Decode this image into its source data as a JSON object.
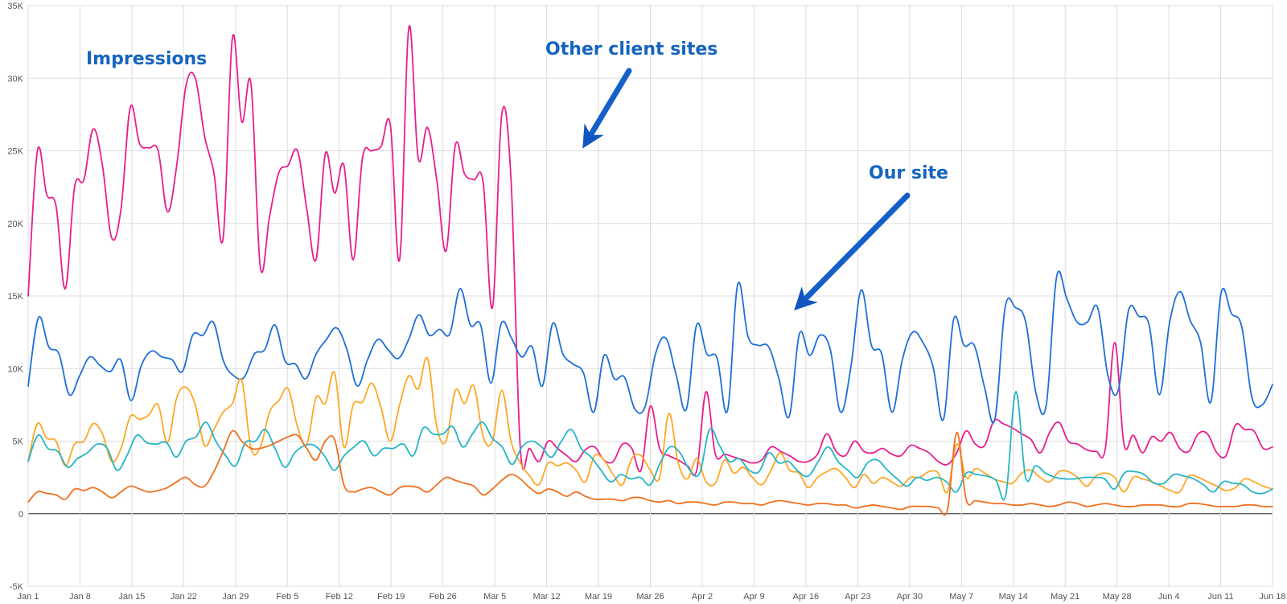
{
  "chart_data": {
    "type": "line",
    "title": "",
    "xlabel": "",
    "ylabel": "",
    "grid": true,
    "ylim": [
      -5000,
      35000
    ],
    "yticks": [
      {
        "value": -5000,
        "label": "-5K"
      },
      {
        "value": 0,
        "label": "0"
      },
      {
        "value": 5000,
        "label": "5K"
      },
      {
        "value": 10000,
        "label": "10K"
      },
      {
        "value": 15000,
        "label": "15K"
      },
      {
        "value": 20000,
        "label": "20K"
      },
      {
        "value": 25000,
        "label": "25K"
      },
      {
        "value": 30000,
        "label": "30K"
      },
      {
        "value": 35000,
        "label": "35K"
      }
    ],
    "xticks": [
      "Jan 1",
      "Jan 8",
      "Jan 15",
      "Jan 22",
      "Jan 29",
      "Feb 5",
      "Feb 12",
      "Feb 19",
      "Feb 26",
      "Mar 5",
      "Mar 12",
      "Mar 19",
      "Mar 26",
      "Apr 2",
      "Apr 9",
      "Apr 16",
      "Apr 23",
      "Apr 30",
      "May 7",
      "May 14",
      "May 21",
      "May 28",
      "Jun 4",
      "Jun 11",
      "Jun 18"
    ],
    "x_start": "Jan 1",
    "x_end": "Jun 18",
    "x_interval_days": 7,
    "annotations": [
      {
        "text": "Impressions",
        "arrow": false
      },
      {
        "text": "Other client sites",
        "arrow": true
      },
      {
        "text": "Our site",
        "arrow": true
      }
    ],
    "series": [
      {
        "color": "#e91e8c",
        "values": [
          15000,
          25000,
          22000,
          21200,
          15500,
          22500,
          23000,
          26500,
          24000,
          19000,
          21000,
          28000,
          25500,
          25200,
          25000,
          20800,
          24000,
          29500,
          30000,
          26000,
          23500,
          19000,
          32800,
          27000,
          29600,
          17000,
          20500,
          23500,
          24000,
          25000,
          21000,
          17500,
          24800,
          22100,
          24000,
          17500,
          24500,
          25000,
          25300,
          26800,
          17500,
          33500,
          24500,
          26600,
          23000,
          18100,
          25400,
          23400,
          23000,
          22800,
          14200,
          27500,
          23000,
          4500,
          4500,
          3600,
          5000,
          4500,
          4000,
          3600,
          4400,
          4600,
          3700,
          3600,
          4800,
          4500,
          3000,
          7400,
          4500,
          4000,
          3700,
          3300,
          3000,
          8400,
          4100,
          4100,
          3900,
          3700,
          3500,
          3700,
          4600,
          4300,
          4000,
          3600,
          3600,
          4100,
          5500,
          4300,
          4000,
          5000,
          4300,
          4200,
          4500,
          4100,
          4000,
          4700,
          4500,
          4200,
          3600,
          3400,
          4200,
          5700,
          4800,
          4700,
          6400,
          6200,
          5900,
          5500,
          5100,
          4200,
          5600,
          6300,
          5000,
          4800,
          4400,
          4300,
          4500,
          11800,
          4800,
          5400,
          4200,
          5300,
          5000,
          5600,
          4500,
          4300,
          5500,
          5500,
          4200,
          4000,
          6100,
          5800,
          5700,
          4500,
          4600
        ]
      },
      {
        "color": "#1e6fd9",
        "values": [
          8800,
          13500,
          11500,
          11000,
          8200,
          9500,
          10800,
          10200,
          9800,
          10600,
          7800,
          10200,
          11200,
          10800,
          10600,
          9800,
          12300,
          12300,
          13200,
          10500,
          9500,
          9400,
          11000,
          11300,
          13000,
          10500,
          10300,
          9300,
          11000,
          12000,
          12800,
          11300,
          8800,
          10600,
          12000,
          11300,
          10700,
          12000,
          13700,
          12300,
          12700,
          12400,
          15500,
          13000,
          13000,
          9000,
          13100,
          12100,
          10800,
          11500,
          8800,
          13100,
          11000,
          10300,
          9700,
          7000,
          10900,
          9300,
          9400,
          7200,
          7400,
          11000,
          12100,
          9600,
          7200,
          13000,
          11000,
          10700,
          7100,
          15800,
          12200,
          11600,
          11500,
          9300,
          6700,
          12400,
          10900,
          12300,
          11300,
          7000,
          10100,
          15400,
          11600,
          11000,
          7000,
          10600,
          12500,
          11800,
          10100,
          6500,
          13400,
          11600,
          11600,
          8700,
          6500,
          14200,
          14200,
          13200,
          8300,
          7500,
          16300,
          14800,
          13200,
          13200,
          14200,
          9500,
          8500,
          14000,
          13600,
          13000,
          8200,
          13200,
          15300,
          13300,
          11800,
          7700,
          15200,
          13800,
          12900,
          8000,
          7500,
          8900
        ]
      },
      {
        "color": "#ffa726",
        "values": [
          3600,
          6200,
          5200,
          5000,
          3300,
          4800,
          5000,
          6200,
          5500,
          3600,
          4500,
          6700,
          6500,
          6800,
          7500,
          4900,
          8000,
          8700,
          7500,
          4700,
          5800,
          7000,
          7600,
          9200,
          4500,
          4600,
          7000,
          7800,
          8600,
          6000,
          4800,
          8000,
          7600,
          9700,
          4600,
          7500,
          7700,
          9000,
          7300,
          5000,
          7500,
          9500,
          8600,
          10700,
          6000,
          5000,
          8500,
          7600,
          8800,
          5300,
          5000,
          8500,
          5000,
          3500,
          2600,
          2000,
          3500,
          3300,
          3500,
          3000,
          2200,
          4000,
          3700,
          2700,
          2000,
          3800,
          4000,
          3000,
          2500,
          6900,
          3500,
          2400,
          3800,
          2200,
          2100,
          3700,
          2800,
          3200,
          2500,
          2000,
          3000,
          4200,
          3000,
          2800,
          1800,
          2500,
          2900,
          3100,
          2500,
          1800,
          2700,
          2100,
          2500,
          2200,
          1900,
          2500,
          2500,
          2900,
          2800,
          1500,
          4800,
          2500,
          3100,
          2800,
          2400,
          2200,
          2100,
          2800,
          3000,
          2500,
          2200,
          2900,
          2900,
          2500,
          1900,
          2600,
          2800,
          2500,
          1500,
          2500,
          2400,
          2200,
          1900,
          1600,
          1500,
          2600,
          2500,
          2200,
          1900,
          1600,
          1800,
          2400,
          2200,
          1900,
          1700
        ]
      },
      {
        "color": "#26b5c6",
        "values": [
          3600,
          5400,
          4500,
          4300,
          3200,
          3800,
          4200,
          4800,
          4500,
          3000,
          4000,
          5400,
          4900,
          4800,
          4900,
          3900,
          5000,
          5300,
          6300,
          5000,
          4000,
          3300,
          4900,
          5000,
          5800,
          4500,
          3200,
          4200,
          4700,
          4700,
          4000,
          3000,
          4000,
          4600,
          5000,
          4000,
          4500,
          4500,
          4800,
          4000,
          5900,
          5500,
          5500,
          6000,
          4600,
          5500,
          6300,
          5200,
          4600,
          3400,
          4600,
          5000,
          4600,
          3900,
          5000,
          5800,
          4500,
          3900,
          3000,
          2200,
          2700,
          2400,
          2500,
          2000,
          3500,
          4600,
          4200,
          3000,
          2800,
          5800,
          4700,
          3600,
          3800,
          3000,
          2900,
          4200,
          3500,
          3600,
          2900,
          2600,
          3600,
          4600,
          3600,
          3000,
          2500,
          3500,
          3700,
          3000,
          2400,
          1900,
          2500,
          2300,
          2500,
          2200,
          1500,
          2800,
          2700,
          2600,
          2300,
          1300,
          8400,
          2500,
          3300,
          2800,
          2500,
          2400,
          2400,
          2500,
          2500,
          2400,
          1700,
          2800,
          2900,
          2700,
          2100,
          2100,
          2700,
          2600,
          2400,
          2000,
          1500,
          2200,
          2100,
          2000,
          1500,
          1400,
          1700
        ]
      },
      {
        "color": "#f07020",
        "values": [
          800,
          1500,
          1400,
          1300,
          1000,
          1700,
          1600,
          1800,
          1500,
          1100,
          1500,
          1900,
          1700,
          1500,
          1600,
          1800,
          2200,
          2500,
          2000,
          1900,
          2900,
          4300,
          5700,
          5000,
          4500,
          4500,
          4700,
          5000,
          5300,
          5400,
          4500,
          3700,
          5000,
          5100,
          2000,
          1500,
          1700,
          1800,
          1500,
          1300,
          1800,
          1900,
          1800,
          1500,
          2000,
          2500,
          2300,
          2100,
          1900,
          1300,
          1700,
          2300,
          2700,
          2400,
          1800,
          1400,
          1700,
          1500,
          1200,
          1500,
          1200,
          1000,
          1000,
          1000,
          900,
          1100,
          1100,
          900,
          800,
          900,
          700,
          800,
          800,
          700,
          600,
          800,
          800,
          700,
          700,
          600,
          800,
          900,
          800,
          700,
          600,
          700,
          700,
          600,
          600,
          400,
          500,
          600,
          500,
          400,
          300,
          500,
          500,
          500,
          400,
          300,
          5600,
          1000,
          900,
          800,
          700,
          700,
          600,
          600,
          700,
          600,
          500,
          600,
          800,
          700,
          500,
          600,
          700,
          600,
          500,
          500,
          600,
          600,
          600,
          500,
          500,
          700,
          700,
          600,
          500,
          500,
          500,
          600,
          600,
          500,
          500
        ]
      }
    ]
  }
}
